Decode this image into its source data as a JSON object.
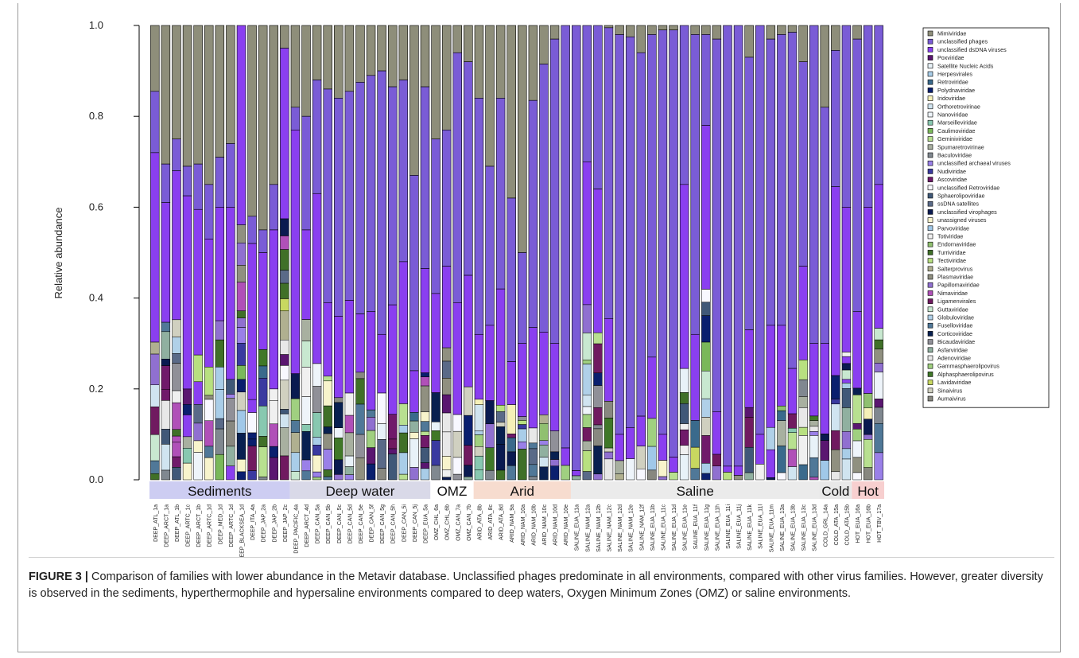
{
  "chart_data": {
    "type": "bar",
    "stacked": true,
    "ylabel": "Relative abundance",
    "ylim": [
      0,
      1
    ],
    "yticks": [
      "0.0",
      "0.2",
      "0.4",
      "0.6",
      "0.8",
      "1.0"
    ],
    "categories": [
      "DEEP_ATL_1a",
      "DEEP_ARCT_1a",
      "DEEP_ATL_1b",
      "DEEP_ARTC_1c",
      "DEEP_ARCT_1b",
      "DEEP_ARTC_1d",
      "DEEP_MED_1d",
      "DEEP_ARTC_1d",
      "DEEP_BLACKSEA_1d",
      "DEEP_ITA_4a",
      "DEEP_JAP_2a",
      "DEEP_JAP_2b",
      "DEEP_JAP_2c",
      "DEEP_PACIFIC_4a",
      "DEEP_ARCT_4d",
      "DEEP_CAN_5a",
      "DEEP_CAN_5b",
      "DEEP_CAN_5c",
      "DEEP_CAN_5d",
      "DEEP_CAN_5e",
      "DEEP_CAN_5f",
      "DEEP_CAN_5g",
      "DEEP_CAN_5h",
      "DEEP_CAN_5i",
      "DEEP_CAN_5j",
      "DEEP_EUA_5a",
      "OMZ_CHL_6a",
      "OMZ_CHL_6b",
      "OMZ_CAN_7a",
      "OMZ_CAN_7b",
      "ARID_ATA_8b",
      "ARID_ATA_8c",
      "ARID_ATA_8d",
      "ARID_NAM_9a",
      "ARID_NAM_10a",
      "ARID_NAM_10b",
      "ARID_NAM_10c",
      "ARID_NAM_10d",
      "ARID_NAM_10e",
      "SALINE_EUA_11a",
      "SALINE_NAM_12a",
      "SALINE_NAM_12b",
      "SALINE_NAM_12c",
      "SALINE_NAM_12d",
      "SALINE_NAM_12e",
      "SALINE_NAM_12f",
      "SALINE_EUA_11b",
      "SALINE_EUA_11c",
      "SALINE_EUA_11d",
      "SALINE_EUA_11e",
      "SALINE_EUA_11f",
      "SALINE_EUA_11g",
      "SALINE_EUA_11h",
      "SALINE_EUA_11i",
      "SALINE_EUA_11j",
      "SALINE_EUA_11k",
      "SALINE_EUA_11l",
      "SALINE_EUA_11m",
      "SALINE_EUA_13a",
      "SALINE_EUA_13b",
      "SALINE_EUA_13c",
      "SALINE_EUA_13d",
      "COLD_GRL_14a",
      "COLD_ATA_15a",
      "COLD_ATA_15b",
      "HOT_EUA_16a",
      "HOT_EUA_16b",
      "HOT_TBV_17a"
    ],
    "top_component": {
      "name": "Mimiviridae",
      "values": [
        0.145,
        0.305,
        0.25,
        0.31,
        0.305,
        0.35,
        0.29,
        0.26,
        0.0,
        0.42,
        0.45,
        0.35,
        0.05,
        0.18,
        0.2,
        0.12,
        0.14,
        0.16,
        0.145,
        0.125,
        0.11,
        0.1,
        0.135,
        0.12,
        0.33,
        0.135,
        0.25,
        0.23,
        0.06,
        0.08,
        0.16,
        0.31,
        0.16,
        0.38,
        0.5,
        0.165,
        0.085,
        0.03,
        0.0,
        0.0,
        0.0,
        0.0,
        0.005,
        0.02,
        0.025,
        0.06,
        0.02,
        0.01,
        0.01,
        0.0,
        0.02,
        0.02,
        0.03,
        0.0,
        0.0,
        0.07,
        0.0,
        0.03,
        0.02,
        0.015,
        0.08,
        0.0,
        0.18,
        0.055,
        0.0,
        0.03,
        0.0,
        0.0
      ]
    },
    "purple_component": {
      "name": "unclassified phages",
      "values": [
        0.135,
        0.085,
        0.07,
        0.065,
        0.1,
        0.12,
        0.11,
        0.14,
        0.0,
        0.06,
        0.05,
        0.1,
        0.0,
        0.05,
        0.25,
        0.25,
        0.47,
        0.48,
        0.46,
        0.51,
        0.52,
        0.58,
        0.48,
        0.4,
        0.43,
        0.4,
        0.34,
        0.3,
        0.55,
        0.47,
        0.52,
        0.35,
        0.42,
        0.36,
        0.2,
        0.5,
        0.59,
        0.67,
        0.93,
        0.98,
        0.3,
        0.36,
        0.64,
        0.88,
        0.86,
        0.8,
        0.71,
        0.89,
        0.94,
        0.35,
        0.66,
        0.2,
        0.82,
        0.97,
        0.97,
        0.6,
        0.9,
        0.63,
        0.64,
        0.74,
        0.45,
        0.7,
        0.52,
        0.3,
        0.4,
        0.6,
        0.4,
        0.35
      ]
    },
    "legend": [
      "Mimiviridae",
      "unclassified phages",
      "unclassified dsDNA viruses",
      "Poxviridae",
      "Satellite Nucleic Acids",
      "Herpesvirales",
      "Retroviridae",
      "Polydnaviridae",
      "Iridoviridae",
      "Orthoretrovirinae",
      "Nanoviridae",
      "Marseilleviridae",
      "Caulimoviridae",
      "Geminiviridae",
      "Spumaretrovirinae",
      "Baculoviridae",
      "unclassified archaeal viruses",
      "Nudiviridae",
      "Ascoviridae",
      "unclassified Retroviridae",
      "Sphaerolipoviridae",
      "ssDNA satellites",
      "unclassified virophages",
      "unassigned viruses",
      "Parvoviridae",
      "Totiviridae",
      "Endornaviridae",
      "Turriviridae",
      "Tectiviridae",
      "Salterprovirus",
      "Plasmaviridae",
      "Papillomaviridae",
      "Nimaviridae",
      "Ligamenvirales",
      "Guttaviridae",
      "Globuloviridae",
      "Fuselloviridae",
      "Corticoviridae",
      "Bicaudaviridae",
      "Asfarviridae",
      "Adenoviridae",
      "Gammasphaerolipovirus",
      "Alphasphaerolipovirus",
      "Lavidaviridae",
      "Sinaivirus",
      "Aumaivirus"
    ],
    "legend_colors": [
      "#8e8e7a",
      "#7a5cd6",
      "#8a3ff0",
      "#5a1670",
      "#e8f2f8",
      "#a9cde8",
      "#3a6a8c",
      "#0a1f6e",
      "#f5f0b8",
      "#d0e4f0",
      "#eef4fa",
      "#88c8b0",
      "#7ab85a",
      "#b8e090",
      "#a8b0a0",
      "#808890",
      "#9a80e8",
      "#3a3aa0",
      "#701a6a",
      "#f8f8ff",
      "#405878",
      "#5a6a88",
      "#0a1a50",
      "#f8f4cc",
      "#a0c8e8",
      "#f0f0f0",
      "#90c070",
      "#407028",
      "#b8e080",
      "#b0b090",
      "#909080",
      "#9070d0",
      "#b050b8",
      "#701a60",
      "#c8e8d0",
      "#b0d0e8",
      "#507898",
      "#082050",
      "#909098",
      "#90b0a0",
      "#e8e8e8",
      "#a0d080",
      "#407828",
      "#c8d860",
      "#d0d0c0",
      "#888880"
    ],
    "environments": [
      {
        "label": "Sediments",
        "start": 0,
        "end": 13,
        "color": "#cdcdf2"
      },
      {
        "label": "Deep water",
        "start": 13,
        "end": 26,
        "color": "#d9d9e8"
      },
      {
        "label": "OMZ",
        "start": 26,
        "end": 30,
        "color": "#ffffff"
      },
      {
        "label": "Arid",
        "start": 30,
        "end": 39,
        "color": "#f7dccf"
      },
      {
        "label": "Saline",
        "start": 39,
        "end": 62,
        "color": "#ebebeb"
      },
      {
        "label": "Cold",
        "start": 62,
        "end": 65,
        "color": "#e8e8e8"
      },
      {
        "label": "Hot",
        "start": 65,
        "end": 68,
        "color": "#f7cfcf"
      }
    ]
  },
  "caption": {
    "label": "FIGURE 3 |",
    "text": "Comparison of families with lower abundance in the Metavir database. Unclassified phages predominate in all environments, compared with other virus families. However, greater diversity is observed in the sediments, hyperthermophile and hypersaline environments compared to deep waters, Oxygen Minimum Zones (OMZ) or saline environments."
  }
}
